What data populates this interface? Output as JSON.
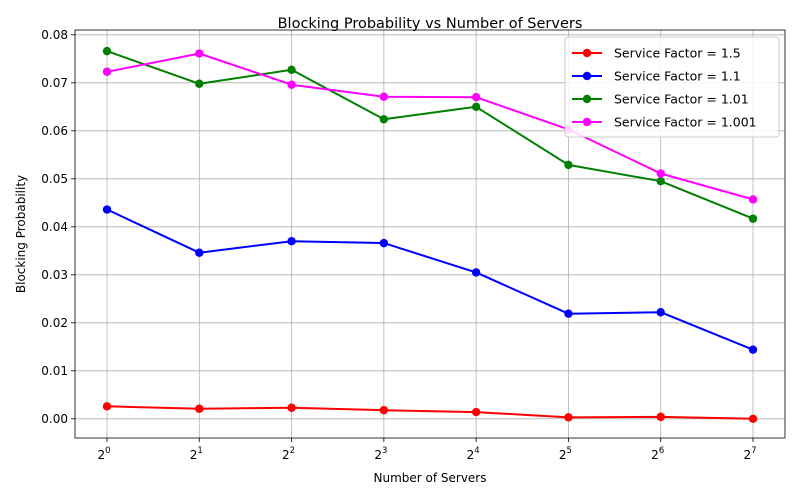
{
  "chart_data": {
    "type": "line",
    "title": "Blocking Probability vs Number of Servers",
    "xlabel": "Number of Servers",
    "ylabel": "Blocking Probability",
    "x_scale": "log2",
    "x": [
      1,
      2,
      4,
      8,
      16,
      32,
      64,
      128
    ],
    "x_tick_base": "2",
    "x_tick_exponents": [
      "0",
      "1",
      "2",
      "3",
      "4",
      "5",
      "6",
      "7"
    ],
    "ylim": [
      -0.004,
      0.081
    ],
    "y_ticks": [
      "0.00",
      "0.01",
      "0.02",
      "0.03",
      "0.04",
      "0.05",
      "0.06",
      "0.07",
      "0.08"
    ],
    "grid": true,
    "legend_position": "top-right",
    "series": [
      {
        "name": "Service Factor = 1.5",
        "color": "#ff0000",
        "values": [
          0.0026,
          0.0021,
          0.0023,
          0.0018,
          0.0014,
          0.0003,
          0.0004,
          0.0
        ]
      },
      {
        "name": "Service Factor = 1.1",
        "color": "#0000ff",
        "values": [
          0.0436,
          0.0346,
          0.037,
          0.0366,
          0.0305,
          0.0219,
          0.0222,
          0.0144
        ]
      },
      {
        "name": "Service Factor = 1.01",
        "color": "#008000",
        "values": [
          0.0766,
          0.0698,
          0.0727,
          0.0624,
          0.065,
          0.0529,
          0.0495,
          0.0417
        ]
      },
      {
        "name": "Service Factor = 1.001",
        "color": "#ff00ff",
        "values": [
          0.0723,
          0.0761,
          0.0696,
          0.0671,
          0.067,
          0.0603,
          0.0511,
          0.0457
        ]
      }
    ]
  }
}
